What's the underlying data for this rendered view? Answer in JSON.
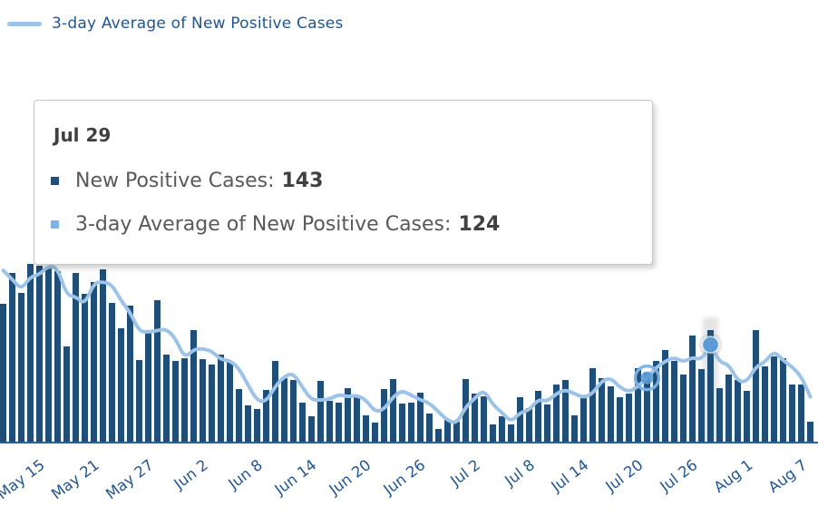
{
  "legend": {
    "label": "3-day Average of New Positive Cases"
  },
  "tooltip": {
    "title": "Jul 29",
    "rows": [
      {
        "label": "New Positive Cases:",
        "value": "143",
        "swatch_color": "#1F4E79"
      },
      {
        "label": "3-day Average of New Positive Cases:",
        "value": "124",
        "swatch_color": "#7EB3E8"
      }
    ]
  },
  "colors": {
    "bar": "#1F4E79",
    "line": "#9DC3E6",
    "marker": "#5B9BD5",
    "marker_halo": "rgba(120,120,120,0.30)",
    "ring": "#7EB3E8",
    "axis_line": "#2E5F94",
    "axis_label_text": "#24558E",
    "legend_text": "#22568F",
    "legend_swatch": "#9DC3E6",
    "tooltip_title_text": "#404040",
    "tooltip_label_text": "#595959",
    "tooltip_value_text": "#404040",
    "highlight_band": "rgba(130,130,130,0.22)"
  },
  "chart_data": {
    "type": "bar",
    "title": "",
    "categories": [
      "May 12",
      "May 13",
      "May 14",
      "May 15",
      "May 16",
      "May 17",
      "May 18",
      "May 19",
      "May 20",
      "May 21",
      "May 22",
      "May 23",
      "May 24",
      "May 25",
      "May 26",
      "May 27",
      "May 28",
      "May 29",
      "May 30",
      "May 31",
      "Jun 1",
      "Jun 2",
      "Jun 3",
      "Jun 4",
      "Jun 5",
      "Jun 6",
      "Jun 7",
      "Jun 8",
      "Jun 9",
      "Jun 10",
      "Jun 11",
      "Jun 12",
      "Jun 13",
      "Jun 14",
      "Jun 15",
      "Jun 16",
      "Jun 17",
      "Jun 18",
      "Jun 19",
      "Jun 20",
      "Jun 21",
      "Jun 22",
      "Jun 23",
      "Jun 24",
      "Jun 25",
      "Jun 26",
      "Jun 27",
      "Jun 28",
      "Jun 29",
      "Jun 30",
      "Jul 1",
      "Jul 2",
      "Jul 3",
      "Jul 4",
      "Jul 5",
      "Jul 6",
      "Jul 7",
      "Jul 8",
      "Jul 9",
      "Jul 10",
      "Jul 11",
      "Jul 12",
      "Jul 13",
      "Jul 14",
      "Jul 15",
      "Jul 16",
      "Jul 17",
      "Jul 18",
      "Jul 19",
      "Jul 20",
      "Jul 21",
      "Jul 22",
      "Jul 23",
      "Jul 24",
      "Jul 25",
      "Jul 26",
      "Jul 27",
      "Jul 28",
      "Jul 29",
      "Jul 30",
      "Jul 31",
      "Aug 1",
      "Aug 2",
      "Aug 3",
      "Aug 4",
      "Aug 5",
      "Aug 6",
      "Aug 7",
      "Aug 8",
      "Aug 9"
    ],
    "series": [
      {
        "name": "New Positive Cases",
        "type": "bar",
        "color": "#1F4E79",
        "values": [
          176,
          215,
          190,
          226,
          224,
          222,
          217,
          122,
          215,
          189,
          203,
          219,
          177,
          145,
          174,
          105,
          140,
          180,
          112,
          103,
          107,
          143,
          106,
          99,
          111,
          103,
          68,
          47,
          43,
          67,
          104,
          82,
          79,
          50,
          33,
          78,
          53,
          51,
          69,
          59,
          34,
          25,
          68,
          80,
          49,
          50,
          63,
          37,
          17,
          29,
          27,
          80,
          62,
          59,
          23,
          33,
          23,
          57,
          44,
          65,
          48,
          74,
          79,
          34,
          57,
          94,
          82,
          71,
          58,
          62,
          94,
          89,
          103,
          117,
          103,
          86,
          136,
          93,
          143,
          69,
          86,
          79,
          65,
          143,
          97,
          109,
          107,
          73,
          73,
          27
        ]
      },
      {
        "name": "3-day Average of New Positive Cases",
        "type": "line",
        "color": "#9DC3E6",
        "values": [
          218,
          207,
          194,
          210,
          213,
          224,
          221,
          187,
          185,
          175,
          202,
          204,
          200,
          180,
          165,
          141,
          140,
          142,
          144,
          132,
          107,
          118,
          119,
          116,
          105,
          104,
          94,
          73,
          53,
          52,
          71,
          84,
          88,
          70,
          54,
          54,
          55,
          61,
          58,
          60,
          54,
          39,
          42,
          58,
          66,
          60,
          54,
          50,
          39,
          28,
          24,
          45,
          56,
          67,
          48,
          38,
          26,
          38,
          41,
          55,
          52,
          62,
          67,
          62,
          57,
          62,
          78,
          82,
          70,
          64,
          71,
          82,
          95,
          103,
          108,
          102,
          108,
          105,
          124,
          102,
          99,
          78,
          77,
          96,
          102,
          116,
          104,
          96,
          84,
          58
        ]
      }
    ],
    "x_tick_labels": [
      "May 15",
      "May 21",
      "May 27",
      "Jun 2",
      "Jun 8",
      "Jun 14",
      "Jun 20",
      "Jun 26",
      "Jul 2",
      "Jul 8",
      "Jul 14",
      "Jul 20",
      "Jul 26",
      "Aug 1",
      "Aug 7"
    ],
    "x_tick_indices": [
      3,
      9,
      15,
      21,
      27,
      33,
      39,
      45,
      51,
      57,
      63,
      69,
      75,
      81,
      87
    ],
    "ylim": [
      0,
      240
    ],
    "grid": false,
    "legend_position": "top-left",
    "hovered_point": {
      "category": "Jul 29",
      "index": 78,
      "new_positive_cases": 143,
      "three_day_average": 124
    },
    "ring_marker": {
      "category": "Jul 22",
      "index": 71
    }
  }
}
